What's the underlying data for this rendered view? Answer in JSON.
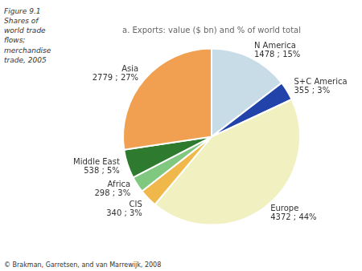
{
  "chart_data": {
    "type": "pie",
    "title": "a. Exports: value ($ bn) and % of world total",
    "annotations": [
      "Figure 9.1\nShares of\nworld trade\nflows;\nmerchandise\ntrade, 2005",
      "© Brakman, Garretsen, and van Marrewijk, 2008"
    ],
    "categories": [
      "N America",
      "S+C America",
      "Europe",
      "CIS",
      "Africa",
      "Middle East",
      "Asia"
    ],
    "values": [
      1478,
      355,
      4372,
      340,
      298,
      538,
      2779
    ],
    "value_labels": [
      "1478 ; 15%",
      "355 ; 3%",
      "4372 ; 44%",
      "340 ; 3%",
      "298 ; 3%",
      "538 ; 5%",
      "2779 ; 27%"
    ],
    "colors": [
      "#c8dce8",
      "#2244aa",
      "#f0f0c0",
      "#f0b84a",
      "#80c880",
      "#2e7a2e",
      "#f0a050"
    ],
    "data_labels": true,
    "legend": false
  }
}
